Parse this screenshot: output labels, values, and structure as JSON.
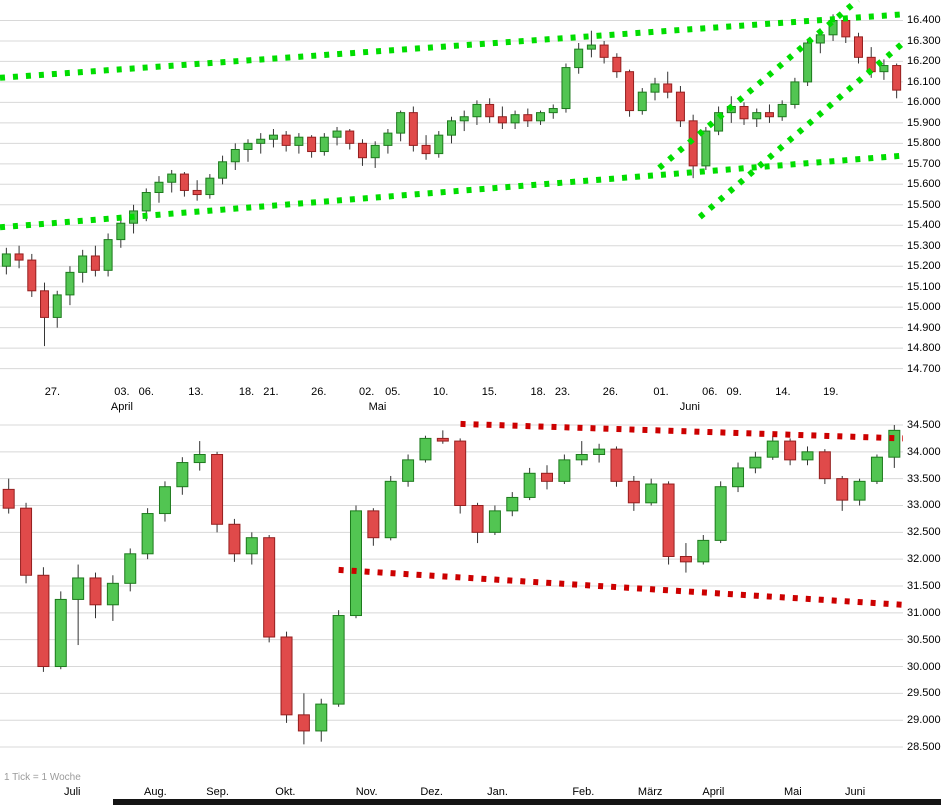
{
  "footer_bar_color": "#141414",
  "chart_data": [
    {
      "type": "candlestick",
      "timeframe": "daily",
      "title": "",
      "y_axis": {
        "min": 14700,
        "max": 16400,
        "step": 100
      },
      "y_tick_labels": [
        "16.400",
        "16.300",
        "16.200",
        "16.100",
        "16.000",
        "15.900",
        "15.800",
        "15.700",
        "15.600",
        "15.500",
        "15.400",
        "15.300",
        "15.200",
        "15.100",
        "15.000",
        "14.900",
        "14.800",
        "14.700"
      ],
      "ylim": [
        14620,
        16500
      ],
      "grid": "horizontal",
      "trend_color": "#00dd00",
      "colors": {
        "up": "#52c552",
        "up_stroke": "#1d7a1d",
        "down": "#e04a4a",
        "down_stroke": "#951f1f",
        "wick": "#333333",
        "grid": "#d8d8d8"
      },
      "trendlines": [
        {
          "x1": 0,
          "p1": 16120,
          "x2": 1,
          "p2": 16430
        },
        {
          "x1": 0,
          "p1": 15390,
          "x2": 1,
          "p2": 15740
        },
        {
          "x1": 0.73,
          "p1": 15680,
          "x2": 0.95,
          "p2": 16500
        },
        {
          "x1": 0.775,
          "p1": 15440,
          "x2": 1,
          "p2": 16290
        }
      ],
      "day_labels": [
        {
          "t": "27.",
          "x": 0.058
        },
        {
          "t": "03.",
          "x": 0.135
        },
        {
          "t": "06.",
          "x": 0.162
        },
        {
          "t": "13.",
          "x": 0.217
        },
        {
          "t": "18.",
          "x": 0.273
        },
        {
          "t": "21.",
          "x": 0.3
        },
        {
          "t": "26.",
          "x": 0.353
        },
        {
          "t": "02.",
          "x": 0.406
        },
        {
          "t": "05.",
          "x": 0.435
        },
        {
          "t": "10.",
          "x": 0.488
        },
        {
          "t": "15.",
          "x": 0.542
        },
        {
          "t": "18.",
          "x": 0.596
        },
        {
          "t": "23.",
          "x": 0.623
        },
        {
          "t": "26.",
          "x": 0.676
        },
        {
          "t": "01.",
          "x": 0.732
        },
        {
          "t": "06.",
          "x": 0.786
        },
        {
          "t": "09.",
          "x": 0.813
        },
        {
          "t": "14.",
          "x": 0.867
        },
        {
          "t": "19.",
          "x": 0.92
        }
      ],
      "month_labels": [
        {
          "t": "April",
          "x": 0.135
        },
        {
          "t": "Mai",
          "x": 0.418
        },
        {
          "t": "Juni",
          "x": 0.764
        }
      ],
      "candles": [
        [
          15200,
          15290,
          15160,
          15260
        ],
        [
          15260,
          15300,
          15190,
          15230
        ],
        [
          15230,
          15260,
          15050,
          15080
        ],
        [
          15080,
          15120,
          14810,
          14950
        ],
        [
          14950,
          15080,
          14900,
          15060
        ],
        [
          15060,
          15200,
          15010,
          15170
        ],
        [
          15170,
          15280,
          15120,
          15250
        ],
        [
          15250,
          15300,
          15150,
          15180
        ],
        [
          15180,
          15360,
          15150,
          15330
        ],
        [
          15330,
          15440,
          15290,
          15410
        ],
        [
          15410,
          15500,
          15360,
          15470
        ],
        [
          15470,
          15580,
          15420,
          15560
        ],
        [
          15560,
          15640,
          15510,
          15610
        ],
        [
          15610,
          15670,
          15560,
          15650
        ],
        [
          15650,
          15660,
          15540,
          15570
        ],
        [
          15570,
          15620,
          15520,
          15550
        ],
        [
          15550,
          15650,
          15530,
          15630
        ],
        [
          15630,
          15740,
          15600,
          15710
        ],
        [
          15710,
          15800,
          15670,
          15770
        ],
        [
          15770,
          15820,
          15710,
          15800
        ],
        [
          15800,
          15850,
          15750,
          15820
        ],
        [
          15820,
          15870,
          15780,
          15840
        ],
        [
          15840,
          15860,
          15760,
          15790
        ],
        [
          15790,
          15850,
          15750,
          15830
        ],
        [
          15830,
          15840,
          15730,
          15760
        ],
        [
          15760,
          15850,
          15740,
          15830
        ],
        [
          15830,
          15880,
          15790,
          15860
        ],
        [
          15860,
          15870,
          15770,
          15800
        ],
        [
          15800,
          15820,
          15690,
          15730
        ],
        [
          15730,
          15810,
          15680,
          15790
        ],
        [
          15790,
          15870,
          15750,
          15850
        ],
        [
          15850,
          15960,
          15810,
          15950
        ],
        [
          15950,
          15980,
          15760,
          15790
        ],
        [
          15790,
          15840,
          15720,
          15750
        ],
        [
          15750,
          15860,
          15730,
          15840
        ],
        [
          15840,
          15930,
          15800,
          15910
        ],
        [
          15910,
          15960,
          15860,
          15930
        ],
        [
          15930,
          16010,
          15890,
          15990
        ],
        [
          15990,
          16020,
          15900,
          15930
        ],
        [
          15930,
          15980,
          15870,
          15900
        ],
        [
          15900,
          15960,
          15870,
          15940
        ],
        [
          15940,
          15970,
          15880,
          15910
        ],
        [
          15910,
          15960,
          15890,
          15950
        ],
        [
          15950,
          15990,
          15920,
          15970
        ],
        [
          15970,
          16190,
          15950,
          16170
        ],
        [
          16170,
          16290,
          16140,
          16260
        ],
        [
          16260,
          16350,
          16220,
          16280
        ],
        [
          16280,
          16300,
          16190,
          16220
        ],
        [
          16220,
          16240,
          16120,
          16150
        ],
        [
          16150,
          16160,
          15930,
          15960
        ],
        [
          15960,
          16070,
          15940,
          16050
        ],
        [
          16050,
          16120,
          16010,
          16090
        ],
        [
          16090,
          16150,
          16020,
          16050
        ],
        [
          16050,
          16080,
          15880,
          15910
        ],
        [
          15910,
          15940,
          15630,
          15690
        ],
        [
          15690,
          15880,
          15670,
          15860
        ],
        [
          15860,
          15980,
          15840,
          15950
        ],
        [
          15950,
          16030,
          15900,
          15980
        ],
        [
          15980,
          16000,
          15890,
          15920
        ],
        [
          15920,
          15970,
          15880,
          15950
        ],
        [
          15950,
          15990,
          15900,
          15930
        ],
        [
          15930,
          16010,
          15910,
          15990
        ],
        [
          15990,
          16120,
          15970,
          16100
        ],
        [
          16100,
          16310,
          16080,
          16290
        ],
        [
          16290,
          16360,
          16240,
          16330
        ],
        [
          16330,
          16430,
          16300,
          16400
        ],
        [
          16400,
          16420,
          16290,
          16320
        ],
        [
          16320,
          16340,
          16190,
          16220
        ],
        [
          16220,
          16270,
          16120,
          16150
        ],
        [
          16150,
          16210,
          16110,
          16180
        ],
        [
          16180,
          16190,
          16020,
          16060
        ]
      ]
    },
    {
      "type": "candlestick",
      "timeframe": "weekly",
      "footnote": "1 Tick = 1 Woche",
      "y_axis": {
        "min": 28500,
        "max": 34500,
        "step": 500
      },
      "y_tick_labels": [
        "34.500",
        "34.000",
        "33.500",
        "33.000",
        "32.500",
        "32.000",
        "31.500",
        "31.000",
        "30.500",
        "30.000",
        "29.500",
        "29.000",
        "28.500"
      ],
      "ylim": [
        28035,
        34630
      ],
      "grid": "horizontal",
      "trend_color": "#cc0000",
      "colors": {
        "up": "#52c552",
        "up_stroke": "#1d7a1d",
        "down": "#e04a4a",
        "down_stroke": "#951f1f",
        "wick": "#333333",
        "grid": "#d8d8d8"
      },
      "trendlines": [
        {
          "x1": 0.51,
          "p1": 34520,
          "x2": 1,
          "p2": 34250
        },
        {
          "x1": 0.375,
          "p1": 31800,
          "x2": 1,
          "p2": 31150
        }
      ],
      "month_labels": [
        {
          "t": "Juli",
          "x": 0.08
        },
        {
          "t": "Aug.",
          "x": 0.172
        },
        {
          "t": "Sep.",
          "x": 0.241
        },
        {
          "t": "Okt.",
          "x": 0.316
        },
        {
          "t": "Nov.",
          "x": 0.406
        },
        {
          "t": "Dez.",
          "x": 0.478
        },
        {
          "t": "Jan.",
          "x": 0.551
        },
        {
          "t": "Feb.",
          "x": 0.646
        },
        {
          "t": "März",
          "x": 0.72
        },
        {
          "t": "April",
          "x": 0.79
        },
        {
          "t": "Mai",
          "x": 0.878
        },
        {
          "t": "Juni",
          "x": 0.947
        }
      ],
      "candles": [
        [
          33300,
          33500,
          32850,
          32950
        ],
        [
          32950,
          33050,
          31550,
          31700
        ],
        [
          31700,
          31850,
          29900,
          30000
        ],
        [
          30000,
          31400,
          29950,
          31250
        ],
        [
          31250,
          31900,
          30400,
          31650
        ],
        [
          31650,
          31750,
          30900,
          31150
        ],
        [
          31150,
          31700,
          30850,
          31550
        ],
        [
          31550,
          32200,
          31400,
          32100
        ],
        [
          32100,
          32950,
          32000,
          32850
        ],
        [
          32850,
          33450,
          32700,
          33350
        ],
        [
          33350,
          33900,
          33200,
          33800
        ],
        [
          33800,
          34200,
          33650,
          33950
        ],
        [
          33950,
          34000,
          32500,
          32650
        ],
        [
          32650,
          32750,
          31950,
          32100
        ],
        [
          32100,
          32500,
          31900,
          32400
        ],
        [
          32400,
          32450,
          30450,
          30550
        ],
        [
          30550,
          30650,
          28950,
          29100
        ],
        [
          29100,
          29500,
          28550,
          28800
        ],
        [
          28800,
          29400,
          28600,
          29300
        ],
        [
          29300,
          31050,
          29250,
          30950
        ],
        [
          30950,
          33000,
          30900,
          32900
        ],
        [
          32900,
          32950,
          32250,
          32400
        ],
        [
          32400,
          33550,
          32350,
          33450
        ],
        [
          33450,
          33950,
          33350,
          33850
        ],
        [
          33850,
          34300,
          33800,
          34250
        ],
        [
          34250,
          34400,
          34150,
          34200
        ],
        [
          34200,
          34250,
          32850,
          33000
        ],
        [
          33000,
          33050,
          32300,
          32500
        ],
        [
          32500,
          33000,
          32450,
          32900
        ],
        [
          32900,
          33250,
          32800,
          33150
        ],
        [
          33150,
          33700,
          33100,
          33600
        ],
        [
          33600,
          33750,
          33300,
          33450
        ],
        [
          33450,
          33950,
          33400,
          33850
        ],
        [
          33850,
          34200,
          33750,
          33950
        ],
        [
          33950,
          34150,
          33800,
          34050
        ],
        [
          34050,
          34100,
          33350,
          33450
        ],
        [
          33450,
          33550,
          32900,
          33050
        ],
        [
          33050,
          33500,
          33000,
          33400
        ],
        [
          33400,
          33450,
          31900,
          32050
        ],
        [
          32050,
          32300,
          31750,
          31950
        ],
        [
          31950,
          32450,
          31900,
          32350
        ],
        [
          32350,
          33450,
          32300,
          33350
        ],
        [
          33350,
          33800,
          33250,
          33700
        ],
        [
          33700,
          34000,
          33600,
          33900
        ],
        [
          33900,
          34300,
          33850,
          34200
        ],
        [
          34200,
          34250,
          33750,
          33850
        ],
        [
          33850,
          34100,
          33750,
          34000
        ],
        [
          34000,
          34050,
          33400,
          33500
        ],
        [
          33500,
          33550,
          32900,
          33100
        ],
        [
          33100,
          33500,
          33000,
          33450
        ],
        [
          33450,
          33950,
          33400,
          33900
        ],
        [
          33900,
          34500,
          33700,
          34400
        ]
      ]
    }
  ]
}
